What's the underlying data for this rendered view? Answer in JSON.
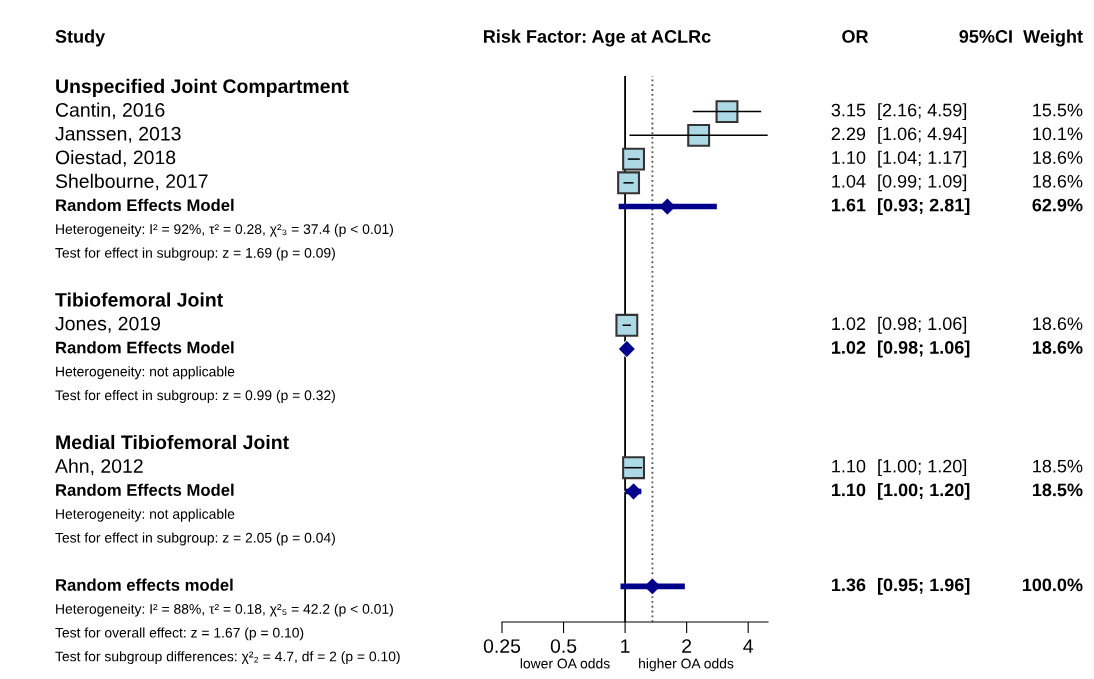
{
  "chart_data": {
    "type": "scatter",
    "orientation": "horizontal",
    "title": "Risk Factor: Age at ACLRc",
    "annotations": [
      "Study",
      "OR",
      "95%CI",
      "Weight",
      "lower OA odds",
      "higher OA odds"
    ],
    "categories": [
      "Unspecified Joint Compartment",
      "Cantin, 2016",
      "Janssen, 2013",
      "Oiestad, 2018",
      "Shelbourne, 2017",
      "Random Effects Model",
      "Heterogeneity: I² = 92%, τ² = 0.28, χ²₃ = 37.4 (p < 0.01)",
      "Test for effect in subgroup: z = 1.69 (p = 0.09)",
      null,
      "Tibiofemoral Joint",
      "Jones, 2019",
      "Random Effects Model",
      "Heterogeneity: not applicable",
      "Test for effect in subgroup: z = 0.99 (p = 0.32)",
      null,
      "Medial Tibiofemoral Joint",
      "Ahn, 2012",
      "Random Effects Model",
      "Heterogeneity: not applicable",
      "Test for effect in subgroup: z = 2.05 (p = 0.04)",
      null,
      "Random effects model",
      "Heterogeneity: I² = 88%, τ² = 0.18, χ²₅ = 42.2 (p < 0.01)",
      "Test for overall effect: z = 1.67 (p = 0.10)",
      "Test for subgroup differences: χ²₂ = 4.7, df = 2 (p = 0.10)"
    ],
    "series": [
      {
        "marker": "square",
        "color": "#add8e6",
        "values": [
          null,
          3.15,
          2.29,
          1.1,
          1.04,
          null,
          null,
          null,
          null,
          null,
          1.02,
          null,
          null,
          null,
          null,
          null,
          1.1,
          null,
          null,
          null,
          null,
          null,
          null,
          null,
          null
        ],
        "errors": [
          null,
          [
            2.16,
            4.59
          ],
          [
            1.06,
            4.94
          ],
          [
            1.04,
            1.17
          ],
          [
            0.99,
            1.09
          ],
          null,
          null,
          null,
          null,
          null,
          [
            0.98,
            1.06
          ],
          null,
          null,
          null,
          null,
          null,
          [
            1.0,
            1.2
          ],
          null,
          null,
          null,
          null,
          null,
          null,
          null,
          null
        ],
        "value_labels": [
          null,
          "3.15 [2.16; 4.59] 15.5%",
          "2.29 [1.06; 4.94] 10.1%",
          "1.10 [1.04; 1.17] 18.6%",
          "1.04 [0.99; 1.09] 18.6%",
          null,
          null,
          null,
          null,
          null,
          "1.02 [0.98; 1.06] 18.6%",
          null,
          null,
          null,
          null,
          null,
          "1.10 [1.00; 1.20] 18.5%",
          null,
          null,
          null,
          null,
          null,
          null,
          null,
          null
        ]
      },
      {
        "marker": "diamond",
        "color": "#00008b",
        "values": [
          null,
          null,
          null,
          null,
          null,
          1.61,
          null,
          null,
          null,
          null,
          null,
          1.02,
          null,
          null,
          null,
          null,
          null,
          1.1,
          null,
          null,
          null,
          1.36,
          null,
          null,
          null
        ],
        "errors": [
          null,
          null,
          null,
          null,
          null,
          [
            0.93,
            2.81
          ],
          null,
          null,
          null,
          null,
          null,
          [
            0.98,
            1.06
          ],
          null,
          null,
          null,
          null,
          null,
          [
            1.0,
            1.2
          ],
          null,
          null,
          null,
          [
            0.95,
            1.96
          ],
          null,
          null,
          null
        ],
        "value_labels": [
          null,
          null,
          null,
          null,
          null,
          "1.61 [0.93; 2.81] 62.9%",
          null,
          null,
          null,
          null,
          null,
          "1.02 [0.98; 1.06] 18.6%",
          null,
          null,
          null,
          null,
          null,
          "1.10 [1.00; 1.20] 18.5%",
          null,
          null,
          null,
          "1.36 [0.95; 1.96] 100.0%",
          null,
          null,
          null
        ]
      }
    ],
    "log": "x",
    "xlim": [
      0.25,
      5
    ],
    "xticks": [
      0.25,
      0.5,
      1,
      2,
      4
    ],
    "grid": false,
    "legend": false,
    "ref_lines": [
      {
        "axis": "x",
        "value": 1,
        "line_style": "solid",
        "color": "#000000"
      },
      {
        "axis": "x",
        "value": 1.36,
        "line_style": "dotted",
        "color": "#555555"
      }
    ]
  }
}
